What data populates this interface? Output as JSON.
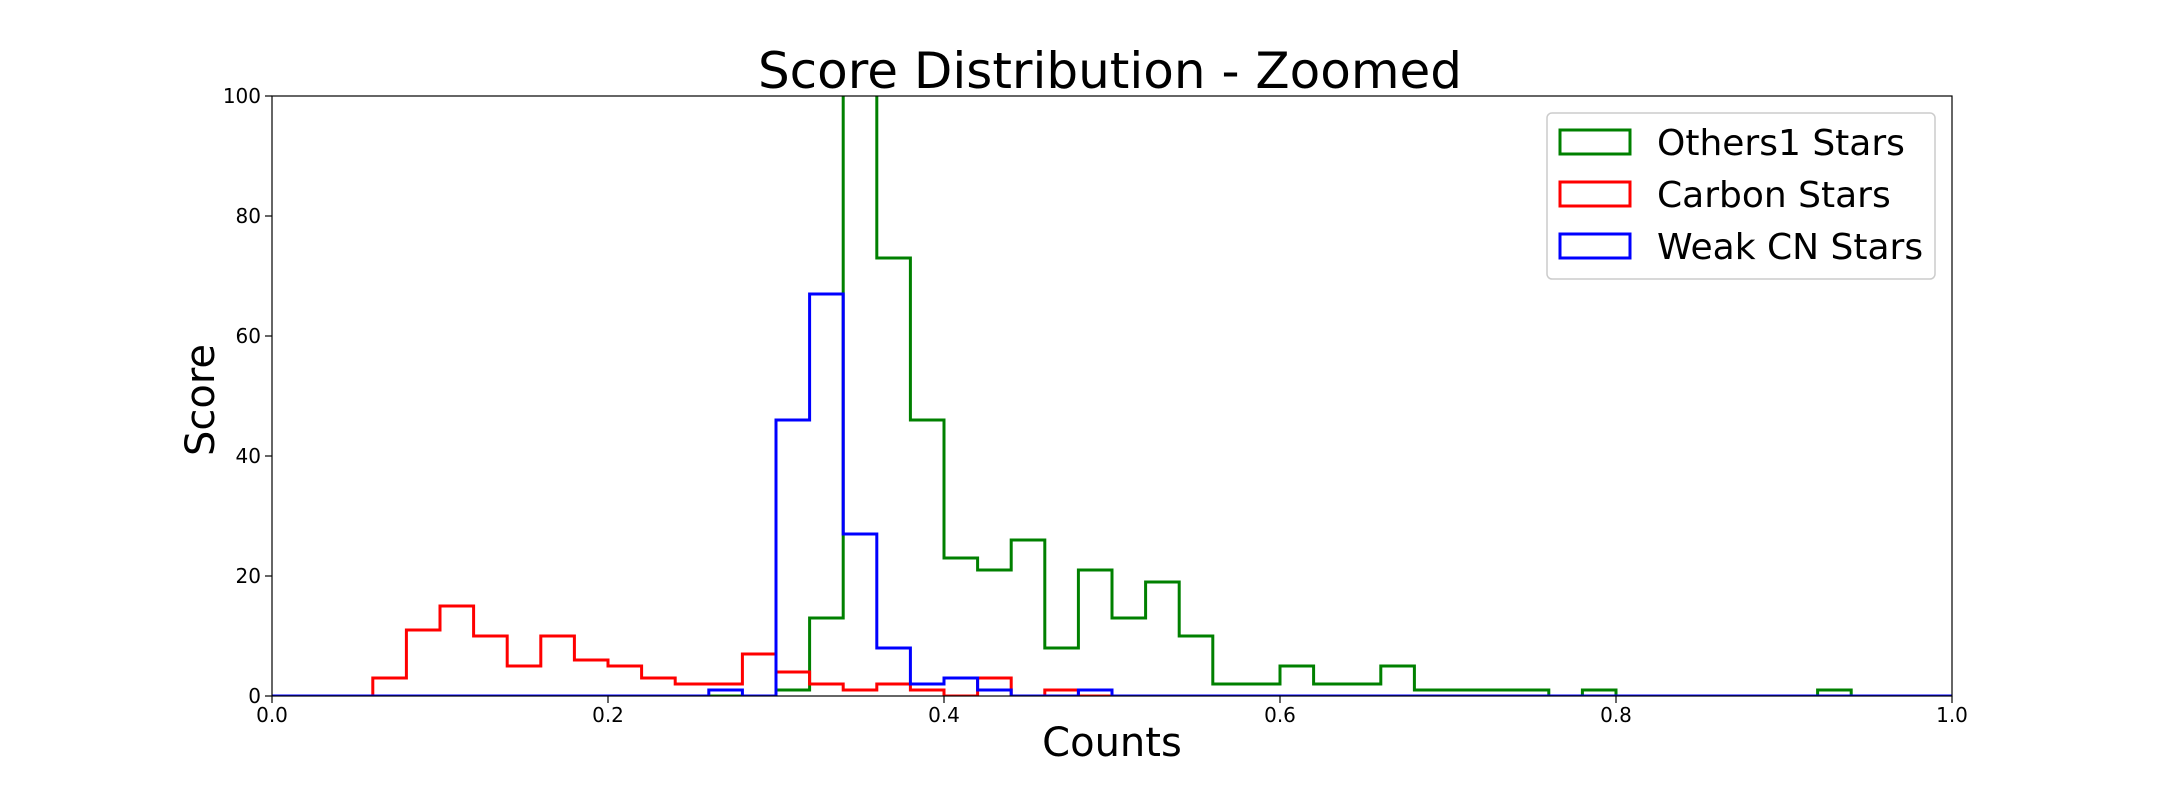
{
  "chart_data": {
    "type": "histogram-step",
    "title": "Score Distribution - Zoomed",
    "xlabel": "Counts",
    "ylabel": "Score",
    "xlim": [
      0.0,
      1.0
    ],
    "ylim": [
      0,
      100
    ],
    "xticks": [
      "0.0",
      "0.2",
      "0.4",
      "0.6",
      "0.8",
      "1.0"
    ],
    "yticks": [
      "0",
      "20",
      "40",
      "60",
      "80",
      "100"
    ],
    "legend_position": "top-right",
    "grid": false,
    "bin_edges": [
      0.0,
      0.02,
      0.04,
      0.06,
      0.08,
      0.1,
      0.12,
      0.14,
      0.16,
      0.18,
      0.2,
      0.22,
      0.24,
      0.26,
      0.28,
      0.3,
      0.32,
      0.34,
      0.36,
      0.38,
      0.4,
      0.42,
      0.44,
      0.46,
      0.48,
      0.5,
      0.52,
      0.54,
      0.56,
      0.58,
      0.6,
      0.62,
      0.64,
      0.66,
      0.68,
      0.7,
      0.72,
      0.74,
      0.76,
      0.78,
      0.8,
      0.82,
      0.84,
      0.86,
      0.88,
      0.9,
      0.92,
      0.94,
      0.96,
      0.98,
      1.0
    ],
    "series": [
      {
        "name": "Others1 Stars",
        "color": "#008000",
        "values": [
          0,
          0,
          0,
          0,
          0,
          0,
          0,
          0,
          0,
          0,
          0,
          0,
          0,
          0,
          0,
          1,
          13,
          110,
          73,
          46,
          23,
          21,
          26,
          8,
          21,
          13,
          19,
          10,
          2,
          2,
          5,
          2,
          2,
          5,
          1,
          1,
          1,
          1,
          0,
          1,
          0,
          0,
          0,
          0,
          0,
          0,
          1,
          0,
          0,
          0
        ]
      },
      {
        "name": "Carbon Stars",
        "color": "#ff0000",
        "values": [
          0,
          0,
          0,
          3,
          11,
          15,
          10,
          5,
          10,
          6,
          5,
          3,
          2,
          2,
          7,
          4,
          2,
          1,
          2,
          1,
          0,
          3,
          0,
          1,
          0,
          0,
          0,
          0,
          0,
          0,
          0,
          0,
          0,
          0,
          0,
          0,
          0,
          0,
          0,
          0,
          0,
          0,
          0,
          0,
          0,
          0,
          0,
          0,
          0,
          0
        ]
      },
      {
        "name": "Weak CN Stars",
        "color": "#0000ff",
        "values": [
          0,
          0,
          0,
          0,
          0,
          0,
          0,
          0,
          0,
          0,
          0,
          0,
          0,
          1,
          0,
          46,
          67,
          27,
          8,
          2,
          3,
          1,
          0,
          0,
          1,
          0,
          0,
          0,
          0,
          0,
          0,
          0,
          0,
          0,
          0,
          0,
          0,
          0,
          0,
          0,
          0,
          0,
          0,
          0,
          0,
          0,
          0,
          0,
          0,
          0
        ]
      }
    ]
  }
}
